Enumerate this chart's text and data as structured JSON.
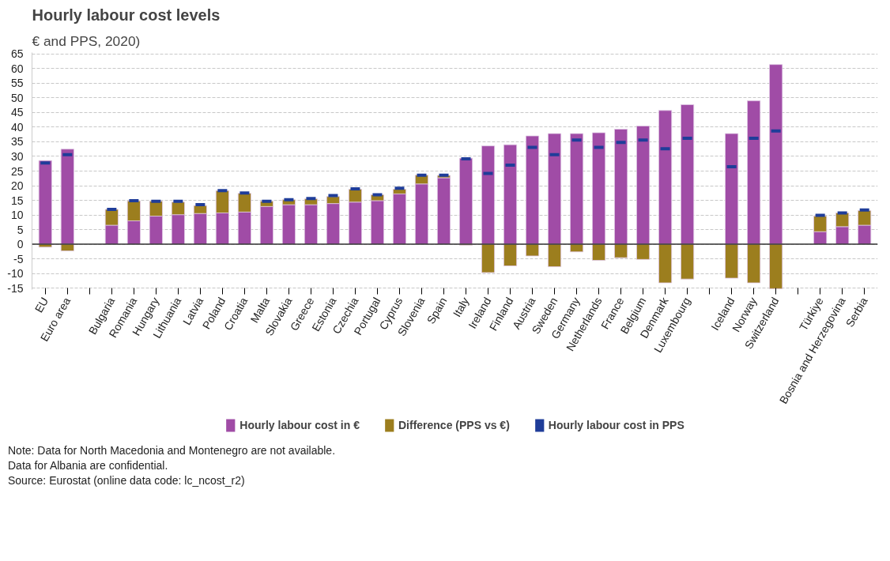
{
  "chart_data": {
    "type": "bar",
    "title": "Hourly labour cost levels",
    "subtitle": "€ and PPS, 2020)",
    "categories": [
      "EU",
      "Euro area",
      null,
      "Bulgaria",
      "Romania",
      "Hungary",
      "Lithuania",
      "Latvia",
      "Poland",
      "Croatia",
      "Malta",
      "Slovakia",
      "Greece",
      "Estonia",
      "Czechia",
      "Portugal",
      "Cyprus",
      "Slovenia",
      "Spain",
      "Italy",
      "Ireland",
      "Finland",
      "Austria",
      "Sweden",
      "Germany",
      "Netherlands",
      "France",
      "Belgium",
      "Denmark",
      "Luxembourg",
      null,
      "Iceland",
      "Norway",
      "Switzerland",
      null,
      "Türkiye",
      "Bosnia and Herzegovina",
      "Serbia"
    ],
    "stacked": true,
    "series": [
      {
        "name": "Hourly labour cost in €",
        "color": "#a04ca6",
        "values": [
          28.6,
          32.5,
          null,
          6.5,
          8.0,
          9.6,
          10.1,
          10.5,
          10.7,
          11.0,
          12.9,
          13.5,
          13.5,
          13.9,
          14.4,
          14.9,
          17.2,
          20.6,
          22.7,
          29.4,
          33.6,
          34.0,
          37.0,
          37.8,
          37.8,
          38.1,
          39.3,
          40.4,
          45.7,
          47.7,
          null,
          37.8,
          49.0,
          61.4,
          null,
          4.3,
          6.0,
          6.5
        ]
      },
      {
        "name": "Difference (PPS vs €)",
        "color": "#9c7e1e",
        "values": [
          -1.0,
          -2.3,
          null,
          5.4,
          6.8,
          5.1,
          4.3,
          2.7,
          7.6,
          6.4,
          1.8,
          1.7,
          2.0,
          2.4,
          4.4,
          2.0,
          1.6,
          3.0,
          0.8,
          -0.3,
          -9.7,
          -7.4,
          -4.0,
          -7.7,
          -2.6,
          -5.5,
          -4.6,
          -5.2,
          -13.2,
          -11.9,
          null,
          -11.6,
          -13.2,
          -15.2,
          null,
          5.3,
          4.7,
          5.0
        ]
      },
      {
        "name": "Hourly labour cost in PPS",
        "type": "scatter",
        "marker": "square",
        "color": "#1f3d99",
        "values": [
          27.8,
          30.6,
          null,
          11.9,
          14.9,
          14.7,
          14.7,
          13.5,
          18.3,
          17.5,
          14.7,
          15.2,
          15.6,
          16.6,
          18.9,
          16.9,
          19.1,
          23.6,
          23.6,
          29.2,
          24.2,
          27.0,
          33.1,
          30.6,
          35.6,
          33.1,
          34.8,
          35.6,
          32.6,
          36.2,
          null,
          26.5,
          36.2,
          38.7,
          null,
          9.9,
          10.7,
          11.7
        ]
      }
    ],
    "ylim": [
      -15.5,
      65.5
    ],
    "yticks": [
      -15,
      -10,
      -5,
      0,
      5,
      10,
      15,
      20,
      25,
      30,
      35,
      40,
      45,
      50,
      55,
      60,
      65
    ],
    "grid": "y",
    "legend": "bottom",
    "annotations": [
      "Note: Data for North Macedonia and Montenegro are not available.",
      "Data for Albania are confidential.",
      "Source: Eurostat (online data code: lc_ncost_r2)"
    ]
  }
}
